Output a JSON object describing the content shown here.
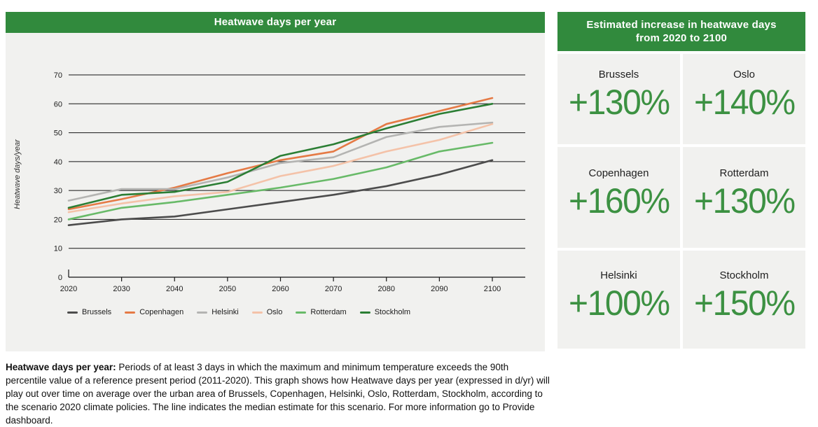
{
  "left_panel": {
    "title": "Heatwave days per year"
  },
  "right_panel": {
    "title": "Estimated increase in heatwave days from 2020 to 2100",
    "cards": [
      {
        "city": "Brussels",
        "value": "+130%"
      },
      {
        "city": "Oslo",
        "value": "+140%"
      },
      {
        "city": "Copenhagen",
        "value": "+160%"
      },
      {
        "city": "Rotterdam",
        "value": "+130%"
      },
      {
        "city": "Helsinki",
        "value": "+100%"
      },
      {
        "city": "Stockholm",
        "value": "+150%"
      }
    ]
  },
  "theme": {
    "header_green": "#318a3d",
    "percent_green": "#3c9142",
    "panel_bg": "#f1f1ef"
  },
  "chart_data": {
    "type": "line",
    "title": "Heatwave days per year",
    "xlabel": "",
    "ylabel": "Heatwave days/year",
    "x": [
      2020,
      2030,
      2040,
      2050,
      2060,
      2070,
      2080,
      2090,
      2100
    ],
    "ylim": [
      0,
      70
    ],
    "yticks": [
      0,
      10,
      20,
      30,
      40,
      50,
      60,
      70
    ],
    "grid": true,
    "legend_position": "bottom",
    "series": [
      {
        "name": "Brussels",
        "color": "#4c4c4c",
        "values": [
          18,
          20,
          21,
          23.5,
          26,
          28.5,
          31.5,
          35.5,
          40.5
        ]
      },
      {
        "name": "Copenhagen",
        "color": "#e57a45",
        "values": [
          23.5,
          27,
          31,
          36,
          40.5,
          43.5,
          53,
          57.5,
          62
        ]
      },
      {
        "name": "Helsinki",
        "color": "#b4b4b2",
        "values": [
          26.5,
          30.5,
          30.5,
          34.5,
          39.5,
          41.5,
          48.5,
          52,
          53.5
        ]
      },
      {
        "name": "Oslo",
        "color": "#f4c2a8",
        "values": [
          22.5,
          25.5,
          28,
          29.5,
          35,
          38.5,
          43.5,
          47.5,
          53
        ]
      },
      {
        "name": "Rotterdam",
        "color": "#68ba68",
        "values": [
          20,
          24,
          26,
          28.5,
          31,
          34,
          38,
          43.5,
          46.5
        ]
      },
      {
        "name": "Stockholm",
        "color": "#2b7e34",
        "values": [
          24,
          28.5,
          29.5,
          33,
          42,
          46,
          51.5,
          56.5,
          60
        ]
      }
    ]
  },
  "caption": {
    "lead": "Heatwave days per year:",
    "body": " Periods of at least 3 days in which the maximum and minimum temperature exceeds the 90th percentile value of a reference present period (2011-2020). This graph shows how Heatwave days per year (expressed in d/yr) will play out over time on average over the urban area of Brussels, Copenhagen, Helsinki, Oslo, Rotterdam, Stockholm, according to the scenario 2020 climate policies. The line indicates the median estimate for this scenario. For more information go to Provide dashboard."
  }
}
